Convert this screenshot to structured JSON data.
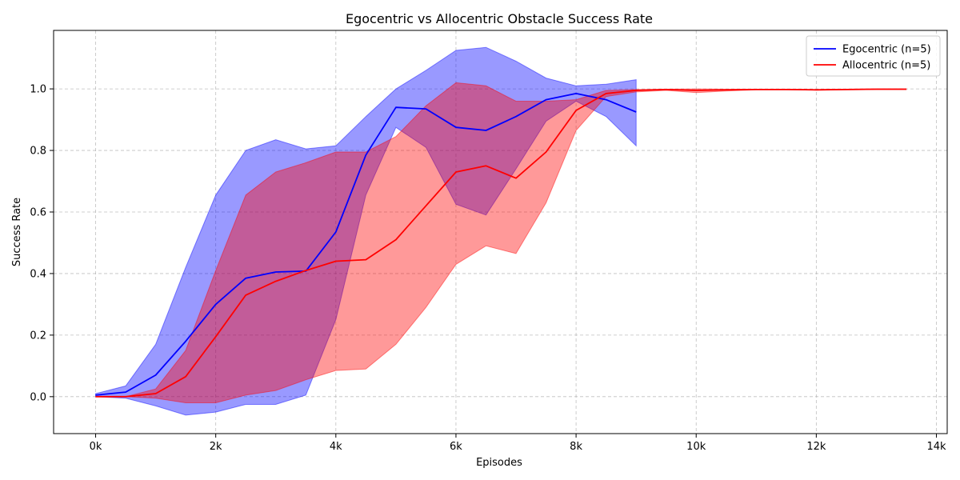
{
  "chart_data": {
    "type": "line",
    "title": "Egocentric vs Allocentric Obstacle Success Rate",
    "xlabel": "Episodes",
    "ylabel": "Success Rate",
    "xlim": [
      -700,
      14180
    ],
    "ylim": [
      -0.12,
      1.19
    ],
    "grid": true,
    "legend_position": "top-right",
    "x_ticks": [
      {
        "value": 0,
        "label": "0k"
      },
      {
        "value": 2000,
        "label": "2k"
      },
      {
        "value": 4000,
        "label": "4k"
      },
      {
        "value": 6000,
        "label": "6k"
      },
      {
        "value": 8000,
        "label": "8k"
      },
      {
        "value": 10000,
        "label": "10k"
      },
      {
        "value": 12000,
        "label": "12k"
      },
      {
        "value": 14000,
        "label": "14k"
      }
    ],
    "y_ticks": [
      {
        "value": 0.0,
        "label": "0.0"
      },
      {
        "value": 0.2,
        "label": "0.2"
      },
      {
        "value": 0.4,
        "label": "0.4"
      },
      {
        "value": 0.6,
        "label": "0.6"
      },
      {
        "value": 0.8,
        "label": "0.8"
      },
      {
        "value": 1.0,
        "label": "1.0"
      }
    ],
    "series": [
      {
        "name": "Egocentric (n=5)",
        "color": "#0000ff",
        "band_color": "#0000ff",
        "band_opacity": 0.4,
        "x": [
          0,
          500,
          1000,
          1500,
          2000,
          2500,
          3000,
          3500,
          4000,
          4500,
          5000,
          5500,
          6000,
          6500,
          7000,
          7500,
          8000,
          8500,
          9000
        ],
        "y": [
          0.005,
          0.015,
          0.07,
          0.18,
          0.3,
          0.385,
          0.405,
          0.408,
          0.535,
          0.785,
          0.94,
          0.935,
          0.875,
          0.865,
          0.91,
          0.965,
          0.985,
          0.965,
          0.925
        ],
        "upper": [
          0.01,
          0.035,
          0.17,
          0.42,
          0.655,
          0.8,
          0.835,
          0.805,
          0.815,
          0.91,
          1.0,
          1.06,
          1.125,
          1.135,
          1.09,
          1.035,
          1.01,
          1.015,
          1.03
        ],
        "lower": [
          0.0,
          -0.005,
          -0.03,
          -0.06,
          -0.05,
          -0.025,
          -0.025,
          0.005,
          0.25,
          0.655,
          0.875,
          0.81,
          0.625,
          0.59,
          0.74,
          0.895,
          0.96,
          0.91,
          0.815
        ]
      },
      {
        "name": "Allocentric (n=5)",
        "color": "#ff0000",
        "band_color": "#ff0000",
        "band_opacity": 0.4,
        "x": [
          0,
          500,
          1000,
          1500,
          2000,
          2500,
          3000,
          3500,
          4000,
          4500,
          5000,
          5500,
          6000,
          6500,
          7000,
          7500,
          8000,
          8500,
          9000,
          9500,
          10000,
          10500,
          11000,
          11500,
          12000,
          12500,
          13000,
          13500
        ],
        "y": [
          0.0,
          0.0,
          0.01,
          0.065,
          0.195,
          0.33,
          0.375,
          0.41,
          0.44,
          0.445,
          0.51,
          0.62,
          0.73,
          0.75,
          0.71,
          0.795,
          0.93,
          0.985,
          0.995,
          0.998,
          0.995,
          0.997,
          0.998,
          0.998,
          0.997,
          0.998,
          0.999,
          0.999
        ],
        "upper": [
          0.0,
          0.0,
          0.025,
          0.15,
          0.41,
          0.655,
          0.73,
          0.76,
          0.795,
          0.795,
          0.845,
          0.945,
          1.02,
          1.01,
          0.96,
          0.96,
          0.965,
          0.995,
          0.998,
          0.999,
          1.0,
          0.999,
          0.999,
          0.999,
          0.998,
          0.999,
          1.0,
          1.0
        ],
        "lower": [
          0.0,
          0.0,
          -0.005,
          -0.02,
          -0.02,
          0.005,
          0.02,
          0.055,
          0.085,
          0.09,
          0.17,
          0.29,
          0.43,
          0.49,
          0.465,
          0.63,
          0.865,
          0.975,
          0.99,
          0.995,
          0.988,
          0.993,
          0.997,
          0.997,
          0.996,
          0.997,
          0.998,
          0.998
        ]
      }
    ]
  }
}
